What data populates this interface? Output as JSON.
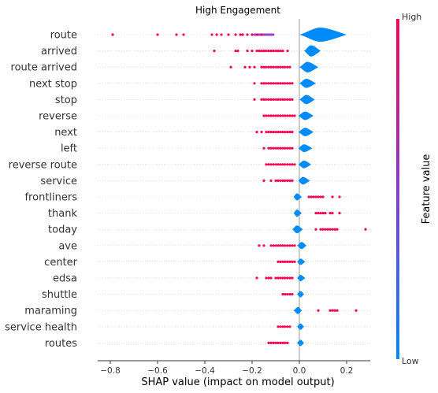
{
  "chart_data": {
    "type": "scatter",
    "subtype": "shap-summary-violin",
    "title": "High Engagement",
    "xlabel": "SHAP value (impact on model output)",
    "xlim": [
      -0.85,
      0.32
    ],
    "xticks": [
      "−0.8",
      "−0.6",
      "−0.4",
      "−0.2",
      "0.0",
      "0.2"
    ],
    "xtick_values": [
      -0.8,
      -0.6,
      -0.4,
      -0.2,
      0.0,
      0.2
    ],
    "colorbar": {
      "label": "Feature value",
      "high": "High",
      "low": "Low"
    },
    "colors": {
      "high": "#ff0052",
      "low": "#008bfb",
      "axis": "#333333",
      "zero_line": "#999999",
      "row_line": "#cccccc"
    },
    "features": [
      {
        "name": "route",
        "violin": [
          0.0,
          0.2
        ],
        "peak": 0.09,
        "scale": 1.0,
        "high_points": [
          -0.79,
          -0.6,
          -0.52,
          -0.49,
          -0.37,
          -0.35,
          -0.33,
          -0.3,
          -0.27,
          -0.25,
          -0.24,
          -0.22,
          -0.2,
          -0.18,
          -0.16
        ],
        "purple_segment": [
          -0.19,
          -0.11
        ]
      },
      {
        "name": "arrived",
        "violin": [
          0.02,
          0.09
        ],
        "peak": 0.05,
        "scale": 0.8,
        "high_points": [
          -0.36,
          -0.27,
          -0.26,
          -0.22,
          -0.2,
          -0.18,
          -0.17,
          -0.16,
          -0.15,
          -0.14,
          -0.13,
          -0.12,
          -0.11,
          -0.1,
          -0.09,
          -0.08,
          -0.07,
          -0.05
        ]
      },
      {
        "name": "route arrived",
        "violin": [
          0.0,
          0.08
        ],
        "peak": 0.035,
        "scale": 0.75,
        "high_points": [
          -0.29,
          -0.23,
          -0.21,
          -0.19,
          -0.16,
          -0.15,
          -0.14,
          -0.13,
          -0.12,
          -0.11,
          -0.1,
          -0.09,
          -0.08,
          -0.07,
          -0.06,
          -0.05,
          -0.04
        ]
      },
      {
        "name": "next stop",
        "violin": [
          0.0,
          0.07
        ],
        "peak": 0.03,
        "scale": 0.65,
        "high_points": [
          -0.19,
          -0.16,
          -0.15,
          -0.14,
          -0.13,
          -0.12,
          -0.11,
          -0.1,
          -0.09,
          -0.08,
          -0.07,
          -0.06,
          -0.05,
          -0.04,
          -0.03
        ]
      },
      {
        "name": "stop",
        "violin": [
          0.0,
          0.065
        ],
        "peak": 0.03,
        "scale": 0.65,
        "high_points": [
          -0.19,
          -0.16,
          -0.15,
          -0.14,
          -0.13,
          -0.12,
          -0.11,
          -0.1,
          -0.09,
          -0.08,
          -0.07,
          -0.06,
          -0.05,
          -0.04,
          -0.03
        ]
      },
      {
        "name": "reverse",
        "violin": [
          -0.005,
          0.06
        ],
        "peak": 0.025,
        "scale": 0.6,
        "high_points": [
          -0.15,
          -0.14,
          -0.13,
          -0.12,
          -0.11,
          -0.1,
          -0.09,
          -0.08,
          -0.07,
          -0.06,
          -0.05,
          -0.04,
          -0.03,
          -0.02
        ]
      },
      {
        "name": "next",
        "violin": [
          -0.005,
          0.06
        ],
        "peak": 0.025,
        "scale": 0.6,
        "high_points": [
          -0.18,
          -0.16,
          -0.14,
          -0.13,
          -0.12,
          -0.11,
          -0.1,
          -0.09,
          -0.08,
          -0.07,
          -0.06,
          -0.05,
          -0.04,
          -0.03
        ]
      },
      {
        "name": "left",
        "violin": [
          -0.005,
          0.055
        ],
        "peak": 0.02,
        "scale": 0.55,
        "high_points": [
          -0.15,
          -0.13,
          -0.12,
          -0.11,
          -0.1,
          -0.09,
          -0.08,
          -0.07,
          -0.06,
          -0.05,
          -0.04,
          -0.03
        ]
      },
      {
        "name": "reverse route",
        "violin": [
          -0.005,
          0.05
        ],
        "peak": 0.02,
        "scale": 0.55,
        "high_points": [
          -0.14,
          -0.13,
          -0.12,
          -0.11,
          -0.1,
          -0.09,
          -0.08,
          -0.07,
          -0.06,
          -0.05,
          -0.04,
          -0.03,
          -0.02
        ]
      },
      {
        "name": "service",
        "violin": [
          -0.005,
          0.045
        ],
        "peak": 0.015,
        "scale": 0.55,
        "high_points": [
          -0.15,
          -0.12,
          -0.1,
          -0.09,
          -0.08,
          -0.07,
          -0.06,
          -0.05,
          -0.04,
          -0.03
        ]
      },
      {
        "name": "frontliners",
        "violin": [
          -0.025,
          0.01
        ],
        "peak": -0.01,
        "scale": 0.5,
        "high_points": [
          0.04,
          0.05,
          0.06,
          0.07,
          0.08,
          0.09,
          0.1,
          0.14,
          0.17
        ]
      },
      {
        "name": "thank",
        "violin": [
          -0.025,
          0.01
        ],
        "peak": -0.01,
        "scale": 0.5,
        "high_points": [
          0.07,
          0.08,
          0.09,
          0.1,
          0.11,
          0.13,
          0.14,
          0.17
        ]
      },
      {
        "name": "today",
        "violin": [
          -0.03,
          0.015
        ],
        "peak": -0.01,
        "scale": 0.55,
        "high_points": [
          0.07,
          0.09,
          0.1,
          0.11,
          0.12,
          0.13,
          0.14,
          0.15,
          0.16,
          0.28
        ]
      },
      {
        "name": "ave",
        "violin": [
          -0.01,
          0.03
        ],
        "peak": 0.01,
        "scale": 0.5,
        "high_points": [
          -0.17,
          -0.15,
          -0.12,
          -0.11,
          -0.1,
          -0.09,
          -0.08,
          -0.07,
          -0.06,
          -0.05,
          -0.04,
          -0.03,
          -0.02
        ]
      },
      {
        "name": "center",
        "violin": [
          -0.01,
          0.025
        ],
        "peak": 0.005,
        "scale": 0.45,
        "high_points": [
          -0.09,
          -0.08,
          -0.07,
          -0.06,
          -0.05,
          -0.04,
          -0.03,
          -0.02
        ]
      },
      {
        "name": "edsa",
        "violin": [
          -0.01,
          0.025
        ],
        "peak": 0.005,
        "scale": 0.45,
        "high_points": [
          -0.18,
          -0.14,
          -0.13,
          -0.12,
          -0.1,
          -0.09,
          -0.08,
          -0.07,
          -0.06,
          -0.05,
          -0.04,
          -0.03
        ]
      },
      {
        "name": "shuttle",
        "violin": [
          -0.01,
          0.02
        ],
        "peak": 0.005,
        "scale": 0.45,
        "high_points": [
          -0.07,
          -0.06,
          -0.05,
          -0.04,
          -0.03
        ]
      },
      {
        "name": "maraming",
        "violin": [
          -0.025,
          0.01
        ],
        "peak": -0.005,
        "scale": 0.5,
        "high_points": [
          0.08,
          0.13,
          0.14,
          0.15,
          0.16,
          0.24
        ]
      },
      {
        "name": "service health",
        "violin": [
          -0.01,
          0.02
        ],
        "peak": 0.005,
        "scale": 0.45,
        "high_points": [
          -0.09,
          -0.08,
          -0.07,
          -0.06,
          -0.05,
          -0.04
        ]
      },
      {
        "name": "routes",
        "violin": [
          -0.01,
          0.02
        ],
        "peak": 0.005,
        "scale": 0.45,
        "high_points": [
          -0.13,
          -0.12,
          -0.11,
          -0.1,
          -0.09,
          -0.08,
          -0.07,
          -0.06,
          -0.05
        ]
      }
    ]
  }
}
